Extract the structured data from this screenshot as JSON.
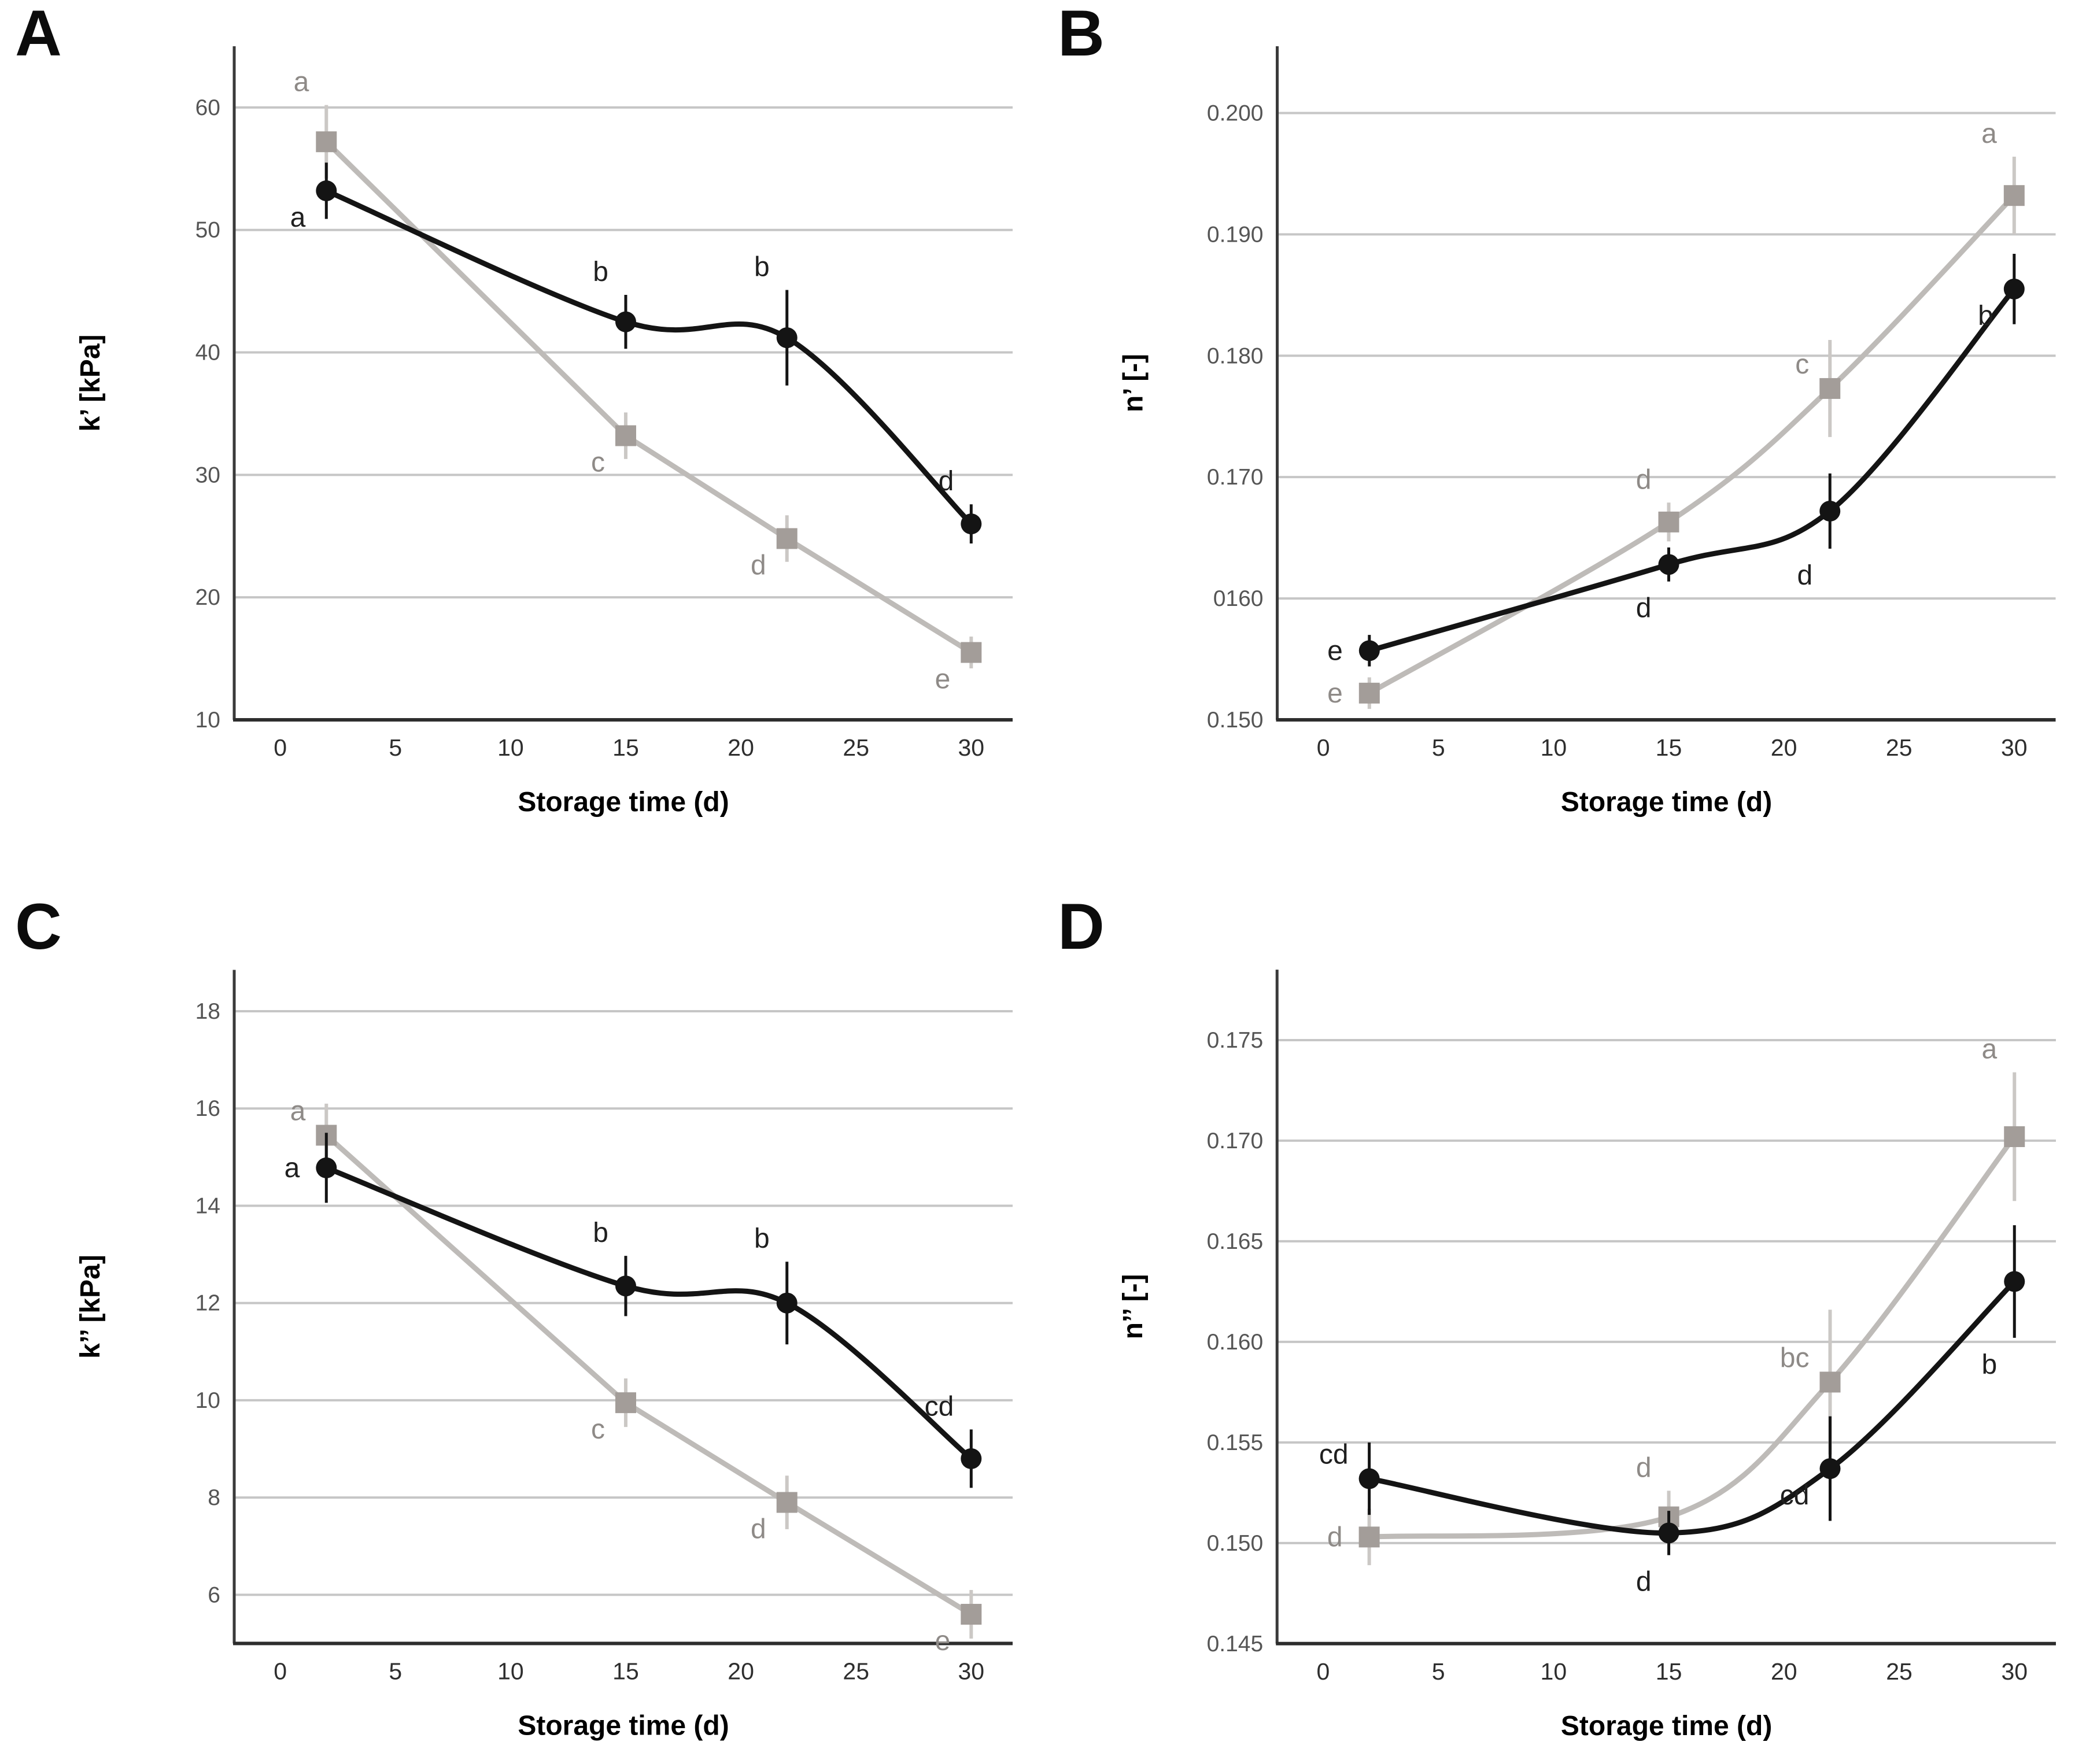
{
  "figure": {
    "xlabel": "Storage time (d)",
    "x_ticks": [
      0,
      5,
      10,
      15,
      20,
      25,
      30
    ],
    "xlim": [
      -2,
      31.8
    ],
    "colors": {
      "background": "#ffffff",
      "gridline": "#c6c6c6",
      "y_axis_spine": "#3a3a3a",
      "x_axis_spine": "#2d2d2d",
      "y_tick_text": "#555555",
      "x_tick_text": "#2e2e2e",
      "axis_label_text": "#000000",
      "black_series": "#141414",
      "gray_series_marker": "#a39d99",
      "gray_series_line": "#bebbb8",
      "gray_error_bar": "#cbc8c5",
      "gray_letter": "#8e8a87",
      "black_letter": "#1f1f1f"
    }
  },
  "chart_data": [
    {
      "type": "line",
      "label": "A",
      "ylabel": "k’ [kPa]",
      "xlabel": "Storage time (d)",
      "ylim": [
        10,
        65
      ],
      "grid": "horizontal",
      "legend_position": "none",
      "y_ticks": [
        {
          "v": 10,
          "label": "10",
          "grid": false
        },
        {
          "v": 20,
          "label": "20",
          "grid": true
        },
        {
          "v": 30,
          "label": "30",
          "grid": true
        },
        {
          "v": 40,
          "label": "40",
          "grid": true
        },
        {
          "v": 50,
          "label": "50",
          "grid": true
        },
        {
          "v": 60,
          "label": "60",
          "grid": true
        }
      ],
      "series": [
        {
          "name": "gray-square-series",
          "marker": "square",
          "curve": "straight",
          "line_color": "#bebbb8",
          "marker_color": "#a39d99",
          "error_color": "#cbc8c5",
          "letter_color": "#8e8a87",
          "points": [
            {
              "x": 2,
              "y": 57.2,
              "err": 3.0,
              "letter": "a",
              "pos": "above-left"
            },
            {
              "x": 15,
              "y": 33.2,
              "err": 1.9,
              "letter": "c",
              "pos": "lower-left"
            },
            {
              "x": 22,
              "y": 24.8,
              "err": 1.9,
              "letter": "d",
              "pos": "lower-left"
            },
            {
              "x": 30,
              "y": 15.5,
              "err": 1.3,
              "letter": "e",
              "pos": "lower-left"
            }
          ]
        },
        {
          "name": "black-circle-series",
          "marker": "circle",
          "curve": "smooth",
          "line_color": "#141414",
          "marker_color": "#141414",
          "error_color": "#141414",
          "letter_color": "#1f1f1f",
          "points": [
            {
              "x": 2,
              "y": 53.2,
              "err": 2.3,
              "letter": "a",
              "pos": "lower-left"
            },
            {
              "x": 15,
              "y": 42.5,
              "err": 2.2,
              "letter": "b",
              "pos": "above-left"
            },
            {
              "x": 22,
              "y": 41.2,
              "err": 3.9,
              "letter": "b",
              "pos": "above-left"
            },
            {
              "x": 30,
              "y": 26.0,
              "err": 1.6,
              "letter": "d",
              "pos": "above-left"
            }
          ]
        }
      ]
    },
    {
      "type": "line",
      "label": "B",
      "ylabel": "n’ [-]",
      "xlabel": "Storage time (d)",
      "ylim": [
        0.15,
        0.2055
      ],
      "grid": "horizontal",
      "legend_position": "none",
      "y_ticks": [
        {
          "v": 0.15,
          "label": "0.150",
          "grid": false
        },
        {
          "v": 0.16,
          "label": "0160",
          "grid": true
        },
        {
          "v": 0.17,
          "label": "0.170",
          "grid": true
        },
        {
          "v": 0.18,
          "label": "0.180",
          "grid": true
        },
        {
          "v": 0.19,
          "label": "0.190",
          "grid": true
        },
        {
          "v": 0.2,
          "label": "0.200",
          "grid": true
        }
      ],
      "series": [
        {
          "name": "gray-square-series",
          "marker": "square",
          "curve": "smooth",
          "line_color": "#bebbb8",
          "marker_color": "#a39d99",
          "error_color": "#cbc8c5",
          "letter_color": "#8e8a87",
          "points": [
            {
              "x": 2,
              "y": 0.1522,
              "err": 0.0013,
              "letter": "e",
              "pos": "left"
            },
            {
              "x": 15,
              "y": 0.1663,
              "err": 0.0016,
              "letter": "d",
              "pos": "above-left"
            },
            {
              "x": 22,
              "y": 0.1773,
              "err": 0.004,
              "letter": "c",
              "pos": "upper-left"
            },
            {
              "x": 30,
              "y": 0.1932,
              "err": 0.0032,
              "letter": "a",
              "pos": "above-left"
            }
          ]
        },
        {
          "name": "black-circle-series",
          "marker": "circle",
          "curve": "smooth",
          "line_color": "#141414",
          "marker_color": "#141414",
          "error_color": "#141414",
          "letter_color": "#1f1f1f",
          "points": [
            {
              "x": 2,
              "y": 0.1557,
              "err": 0.0013,
              "letter": "e",
              "pos": "left"
            },
            {
              "x": 15,
              "y": 0.1628,
              "err": 0.0014,
              "letter": "d",
              "pos": "below-left"
            },
            {
              "x": 22,
              "y": 0.1672,
              "err": 0.0031,
              "letter": "d",
              "pos": "below-left"
            },
            {
              "x": 30,
              "y": 0.1855,
              "err": 0.0029,
              "letter": "b",
              "pos": "lower-left"
            }
          ]
        }
      ]
    },
    {
      "type": "line",
      "label": "C",
      "ylabel": "k’’ [kPa]",
      "xlabel": "Storage time (d)",
      "ylim": [
        5,
        18.85
      ],
      "grid": "horizontal",
      "legend_position": "none",
      "y_ticks": [
        {
          "v": 6,
          "label": "6",
          "grid": true
        },
        {
          "v": 8,
          "label": "8",
          "grid": true
        },
        {
          "v": 10,
          "label": "10",
          "grid": true
        },
        {
          "v": 12,
          "label": "12",
          "grid": true
        },
        {
          "v": 14,
          "label": "14",
          "grid": true
        },
        {
          "v": 16,
          "label": "16",
          "grid": true
        },
        {
          "v": 18,
          "label": "18",
          "grid": true
        }
      ],
      "series": [
        {
          "name": "gray-square-series",
          "marker": "square",
          "curve": "straight",
          "line_color": "#bebbb8",
          "marker_color": "#a39d99",
          "error_color": "#cbc8c5",
          "letter_color": "#8e8a87",
          "points": [
            {
              "x": 2,
              "y": 15.45,
              "err": 0.65,
              "letter": "a",
              "pos": "upper-left"
            },
            {
              "x": 15,
              "y": 9.95,
              "err": 0.5,
              "letter": "c",
              "pos": "lower-left"
            },
            {
              "x": 22,
              "y": 7.9,
              "err": 0.55,
              "letter": "d",
              "pos": "lower-left"
            },
            {
              "x": 30,
              "y": 5.6,
              "err": 0.5,
              "letter": "e",
              "pos": "lower-left"
            }
          ]
        },
        {
          "name": "black-circle-series",
          "marker": "circle",
          "curve": "smooth",
          "line_color": "#141414",
          "marker_color": "#141414",
          "error_color": "#141414",
          "letter_color": "#1f1f1f",
          "points": [
            {
              "x": 2,
              "y": 14.78,
              "err": 0.72,
              "letter": "a",
              "pos": "left"
            },
            {
              "x": 15,
              "y": 12.35,
              "err": 0.62,
              "letter": "b",
              "pos": "above-left"
            },
            {
              "x": 22,
              "y": 12.0,
              "err": 0.85,
              "letter": "b",
              "pos": "above-left"
            },
            {
              "x": 30,
              "y": 8.8,
              "err": 0.6,
              "letter": "cd",
              "pos": "above-left"
            }
          ]
        }
      ]
    },
    {
      "type": "line",
      "label": "D",
      "ylabel": "n’’ [-]",
      "xlabel": "Storage time (d)",
      "ylim": [
        0.145,
        0.1785
      ],
      "grid": "horizontal",
      "legend_position": "none",
      "y_ticks": [
        {
          "v": 0.145,
          "label": "0.145",
          "grid": false
        },
        {
          "v": 0.15,
          "label": "0.150",
          "grid": true
        },
        {
          "v": 0.155,
          "label": "0.155",
          "grid": true
        },
        {
          "v": 0.16,
          "label": "0.160",
          "grid": true
        },
        {
          "v": 0.165,
          "label": "0.165",
          "grid": true
        },
        {
          "v": 0.17,
          "label": "0.170",
          "grid": true
        },
        {
          "v": 0.175,
          "label": "0.175",
          "grid": true
        }
      ],
      "series": [
        {
          "name": "gray-square-series",
          "marker": "square",
          "curve": "smooth",
          "line_color": "#bebbb8",
          "marker_color": "#a39d99",
          "error_color": "#cbc8c5",
          "letter_color": "#8e8a87",
          "points": [
            {
              "x": 2,
              "y": 0.1503,
              "err": 0.0014,
              "letter": "d",
              "pos": "left"
            },
            {
              "x": 15,
              "y": 0.1513,
              "err": 0.0013,
              "letter": "d",
              "pos": "above-left"
            },
            {
              "x": 22,
              "y": 0.158,
              "err": 0.0036,
              "letter": "bc",
              "pos": "upper-left"
            },
            {
              "x": 30,
              "y": 0.1702,
              "err": 0.0032,
              "letter": "a",
              "pos": "above-left"
            }
          ]
        },
        {
          "name": "black-circle-series",
          "marker": "circle",
          "curve": "smooth",
          "line_color": "#141414",
          "marker_color": "#141414",
          "error_color": "#141414",
          "letter_color": "#1f1f1f",
          "points": [
            {
              "x": 2,
              "y": 0.1532,
              "err": 0.0018,
              "letter": "cd",
              "pos": "upper-left"
            },
            {
              "x": 15,
              "y": 0.1505,
              "err": 0.0011,
              "letter": "d",
              "pos": "below-left"
            },
            {
              "x": 22,
              "y": 0.1537,
              "err": 0.0026,
              "letter": "cd",
              "pos": "lower-left"
            },
            {
              "x": 30,
              "y": 0.163,
              "err": 0.0028,
              "letter": "b",
              "pos": "below-left"
            }
          ]
        }
      ]
    }
  ]
}
